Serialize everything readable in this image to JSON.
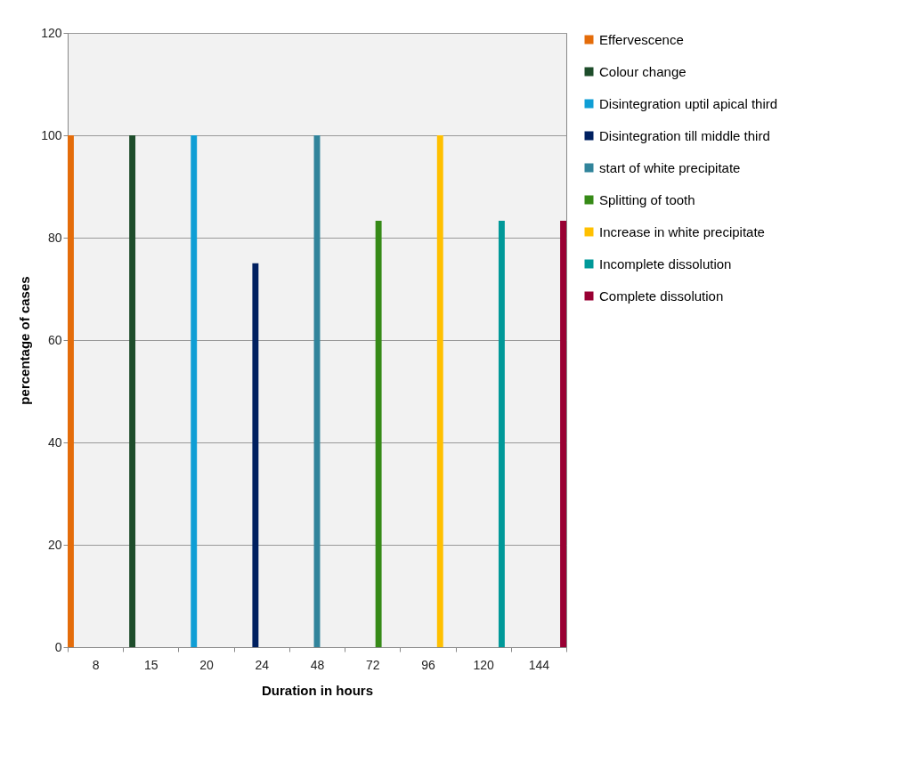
{
  "chart_data": {
    "type": "bar",
    "xlabel": "Duration in hours",
    "ylabel": "percentage of cases",
    "categories": [
      "8",
      "15",
      "20",
      "24",
      "48",
      "72",
      "96",
      "120",
      "144"
    ],
    "series": [
      {
        "name": "Effervescence",
        "color": "#e46c0a",
        "values": [
          100,
          null,
          null,
          null,
          null,
          null,
          null,
          null,
          null
        ]
      },
      {
        "name": "Colour change",
        "color": "#1e4d2b",
        "values": [
          null,
          100,
          null,
          null,
          null,
          null,
          null,
          null,
          null
        ]
      },
      {
        "name": "Disintegration uptil apical third",
        "color": "#0f9ed5",
        "values": [
          null,
          null,
          100,
          null,
          null,
          null,
          null,
          null,
          null
        ]
      },
      {
        "name": "Disintegration till middle third",
        "color": "#002060",
        "values": [
          null,
          null,
          null,
          75,
          null,
          null,
          null,
          null,
          null
        ]
      },
      {
        "name": "start of white precipitate",
        "color": "#31849b",
        "values": [
          null,
          null,
          null,
          null,
          100,
          null,
          null,
          null,
          null
        ]
      },
      {
        "name": "Splitting of tooth",
        "color": "#368a17",
        "values": [
          null,
          null,
          null,
          null,
          null,
          83.3,
          null,
          null,
          null
        ]
      },
      {
        "name": "Increase in white precipitate",
        "color": "#ffc000",
        "values": [
          null,
          null,
          null,
          null,
          null,
          null,
          100,
          null,
          null
        ]
      },
      {
        "name": "Incomplete dissolution",
        "color": "#009999",
        "values": [
          null,
          null,
          null,
          null,
          null,
          null,
          null,
          83.3,
          null
        ]
      },
      {
        "name": "Complete dissolution",
        "color": "#990033",
        "values": [
          null,
          null,
          null,
          null,
          null,
          null,
          null,
          null,
          83.3
        ]
      }
    ],
    "ylim": [
      0,
      120
    ],
    "yticks": [
      0,
      20,
      40,
      60,
      80,
      100,
      120
    ],
    "grid": "y",
    "legend": "right"
  }
}
